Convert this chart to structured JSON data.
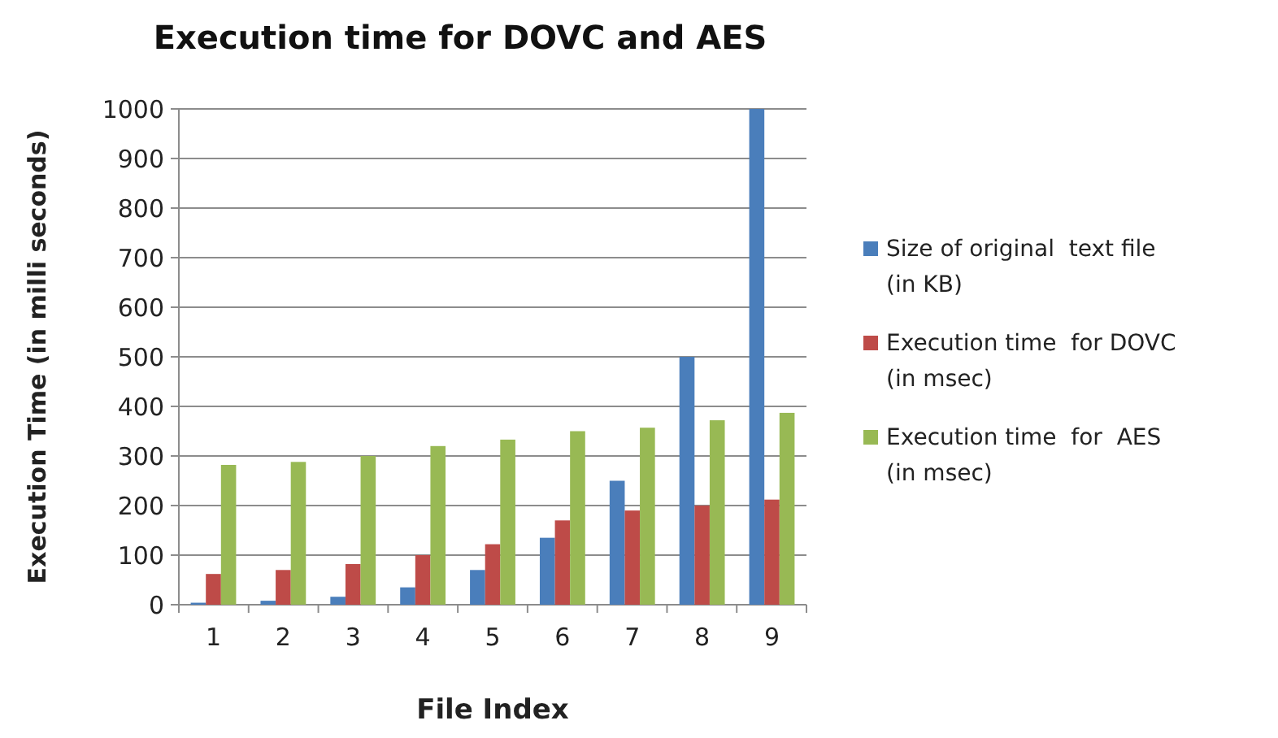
{
  "chart_data": {
    "type": "bar",
    "title": "Execution time for DOVC and AES",
    "xlabel": "File Index",
    "ylabel": "Execution Time (in milli seconds)",
    "categories": [
      "1",
      "2",
      "3",
      "4",
      "5",
      "6",
      "7",
      "8",
      "9"
    ],
    "series": [
      {
        "name": "Size of original  text file (in KB)",
        "color": "#4a7ebb",
        "values": [
          4,
          8,
          16,
          35,
          70,
          135,
          250,
          500,
          1000
        ]
      },
      {
        "name": "Execution time  for DOVC (in msec)",
        "color": "#be4b48",
        "values": [
          62,
          70,
          82,
          100,
          122,
          170,
          190,
          200,
          212
        ]
      },
      {
        "name": "Execution time  for  AES (in msec)",
        "color": "#98b954",
        "values": [
          282,
          288,
          300,
          320,
          333,
          350,
          357,
          372,
          387
        ]
      }
    ],
    "ylim": [
      0,
      1000
    ],
    "yticks": [
      0,
      100,
      200,
      300,
      400,
      500,
      600,
      700,
      800,
      900,
      1000
    ],
    "grid": "y",
    "legend": "right"
  }
}
